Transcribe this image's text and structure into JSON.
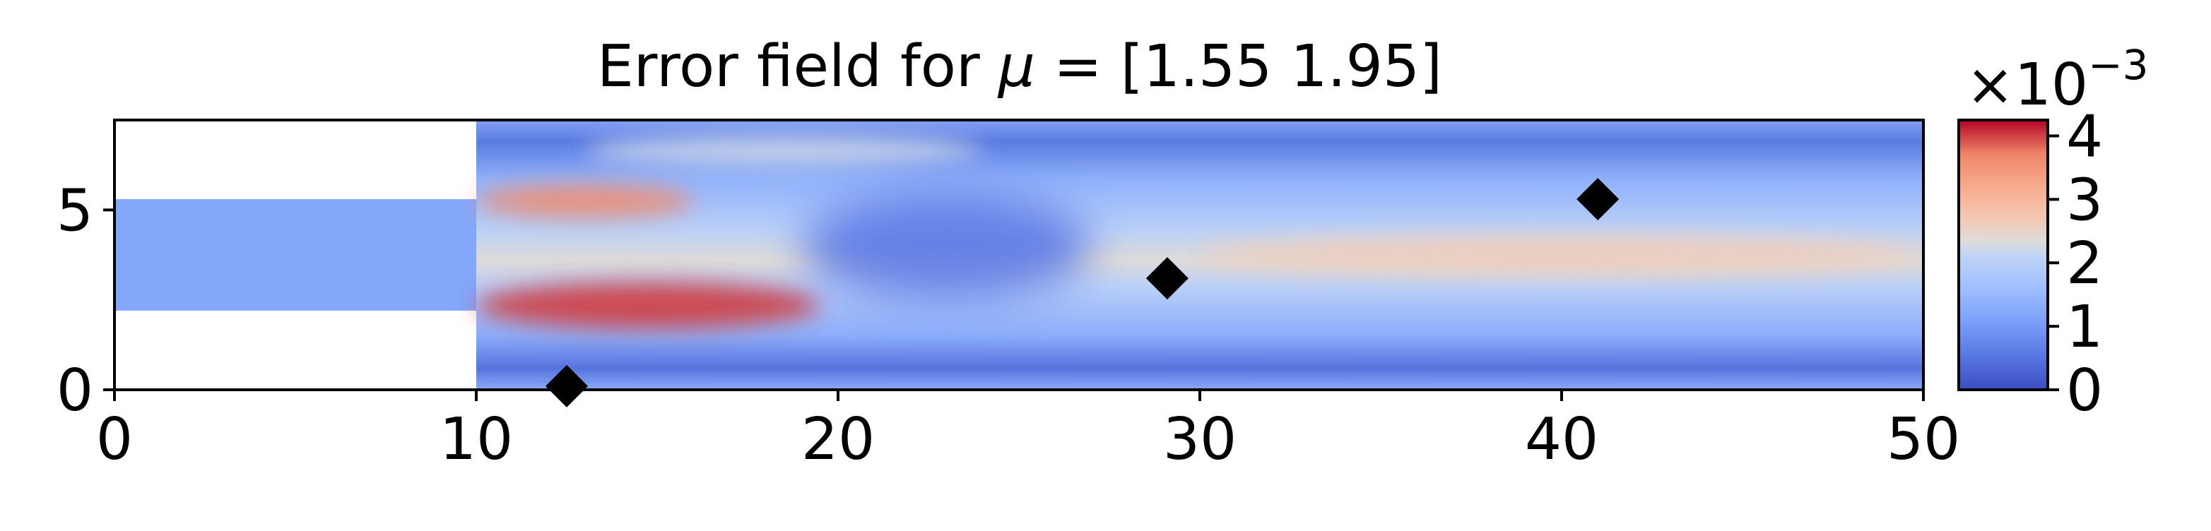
{
  "chart_data": {
    "type": "heatmap",
    "title": {
      "prefix": "Error field for ",
      "symbol": "μ",
      "suffix": " = [1.55 1.95]"
    },
    "xlim": [
      0,
      50
    ],
    "ylim": [
      0,
      7.5
    ],
    "x_ticks": [
      {
        "value": 0,
        "label": "0"
      },
      {
        "value": 10,
        "label": "10"
      },
      {
        "value": 20,
        "label": "20"
      },
      {
        "value": 30,
        "label": "30"
      },
      {
        "value": 40,
        "label": "40"
      },
      {
        "value": 50,
        "label": "50"
      }
    ],
    "y_ticks": [
      {
        "value": 0,
        "label": "0"
      },
      {
        "value": 5,
        "label": "5"
      }
    ],
    "domain": {
      "inlet_channel": {
        "x": [
          0,
          10
        ],
        "y": [
          2.2,
          5.3
        ]
      },
      "main_channel": {
        "x": [
          10,
          50
        ],
        "y": [
          0,
          7.5
        ]
      }
    },
    "colorbar": {
      "range": [
        0,
        4.25
      ],
      "ticks": [
        {
          "value": 0,
          "label": "0"
        },
        {
          "value": 1,
          "label": "1"
        },
        {
          "value": 2,
          "label": "2"
        },
        {
          "value": 3,
          "label": "3"
        },
        {
          "value": 4,
          "label": "4"
        }
      ],
      "multiplier": {
        "base": "×10",
        "exponent": "−3"
      },
      "colormap": "coolwarm"
    },
    "field_features": [
      {
        "x": [
          10,
          16
        ],
        "y": [
          4.8,
          5.7
        ],
        "value": 3.6
      },
      {
        "x": [
          10,
          19.5
        ],
        "y": [
          1.7,
          3.0
        ],
        "value": 4.0
      },
      {
        "x": [
          13,
          24
        ],
        "y": [
          6.2,
          7.1
        ],
        "value": 2.2
      },
      {
        "x": [
          30,
          50
        ],
        "y": [
          3.2,
          4.3
        ],
        "value": 2.6
      },
      {
        "x": [
          0,
          10
        ],
        "y": [
          2.2,
          5.3
        ],
        "value": 1.2
      },
      {
        "x": [
          19,
          27
        ],
        "y": [
          2.5,
          5.5
        ],
        "value": 0.6
      }
    ],
    "markers": [
      {
        "x": 12.5,
        "y": 0.1
      },
      {
        "x": 29.1,
        "y": 3.1
      },
      {
        "x": 41.0,
        "y": 5.3
      }
    ],
    "colors": {
      "low": "#3b4cc0",
      "mid": "#dddddd",
      "high": "#b40426",
      "marker": "#000000"
    }
  }
}
